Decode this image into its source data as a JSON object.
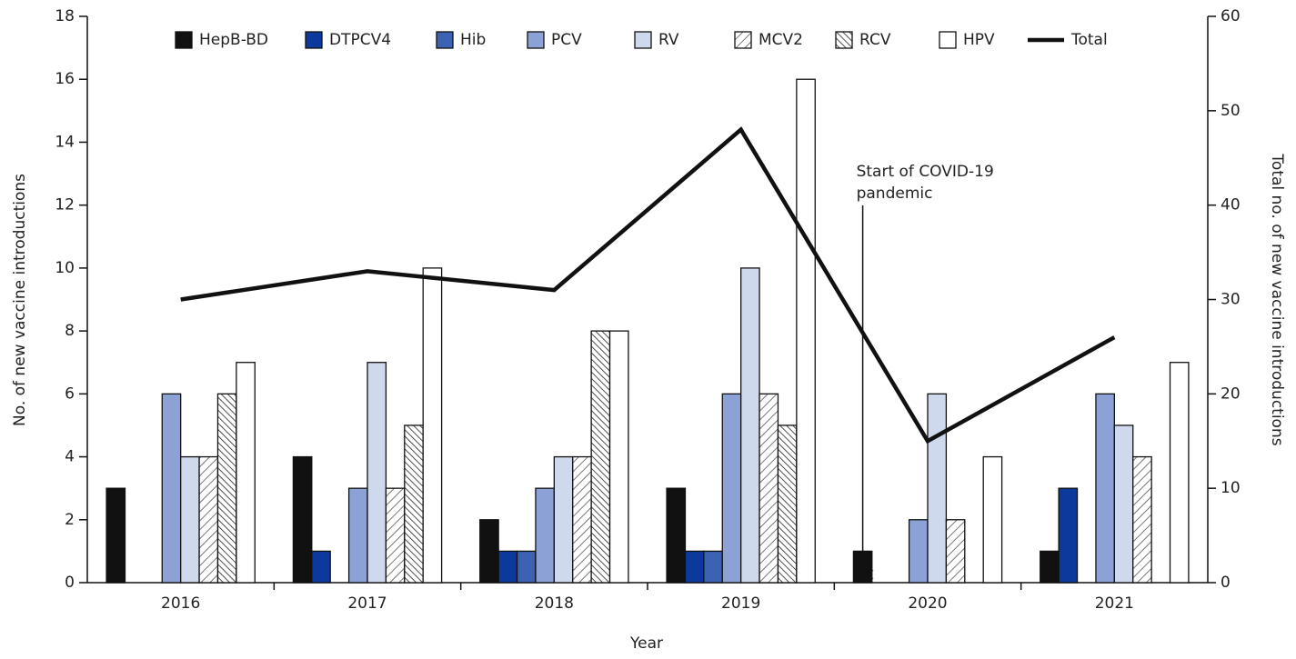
{
  "chart_data": {
    "type": "bar",
    "x_label": "Year",
    "y_label": "No. of new vaccine introductions",
    "y2_label": "Total no. of new vaccine introductions",
    "categories": [
      "2016",
      "2017",
      "2018",
      "2019",
      "2020",
      "2021"
    ],
    "ylim": [
      0,
      18
    ],
    "yticks": [
      0,
      2,
      4,
      6,
      8,
      10,
      12,
      14,
      16,
      18
    ],
    "y2lim": [
      0,
      60
    ],
    "y2ticks": [
      0,
      10,
      20,
      30,
      40,
      50,
      60
    ],
    "series": [
      {
        "name": "HepB-BD",
        "color": "#111111",
        "values": [
          3,
          4,
          2,
          3,
          1,
          1
        ]
      },
      {
        "name": "DTPCV4",
        "color": "#0b3a9c",
        "values": [
          0,
          1,
          1,
          1,
          0,
          3
        ]
      },
      {
        "name": "Hib",
        "color": "#3b62b3",
        "values": [
          0,
          0,
          1,
          1,
          0,
          0
        ]
      },
      {
        "name": "PCV",
        "color": "#8ca2d6",
        "values": [
          6,
          3,
          3,
          6,
          2,
          6
        ]
      },
      {
        "name": "RV",
        "color": "#cfd9ee",
        "values": [
          4,
          7,
          4,
          10,
          6,
          5
        ]
      },
      {
        "name": "MCV2",
        "color": "#ffffff",
        "hatch": "/",
        "values": [
          4,
          3,
          4,
          6,
          2,
          4
        ]
      },
      {
        "name": "RCV",
        "color": "#ffffff",
        "hatch": "\\",
        "values": [
          6,
          5,
          8,
          5,
          0,
          0
        ]
      },
      {
        "name": "HPV",
        "color": "#ffffff",
        "values": [
          7,
          10,
          8,
          16,
          4,
          7
        ]
      },
      {
        "name": "Total",
        "type": "line",
        "axis": "y2",
        "color": "#111111",
        "values": [
          30,
          33,
          31,
          48,
          15,
          26
        ]
      }
    ],
    "annotation": {
      "lines": [
        "Start of COVID-19",
        "pandemic"
      ],
      "category": 4
    }
  }
}
